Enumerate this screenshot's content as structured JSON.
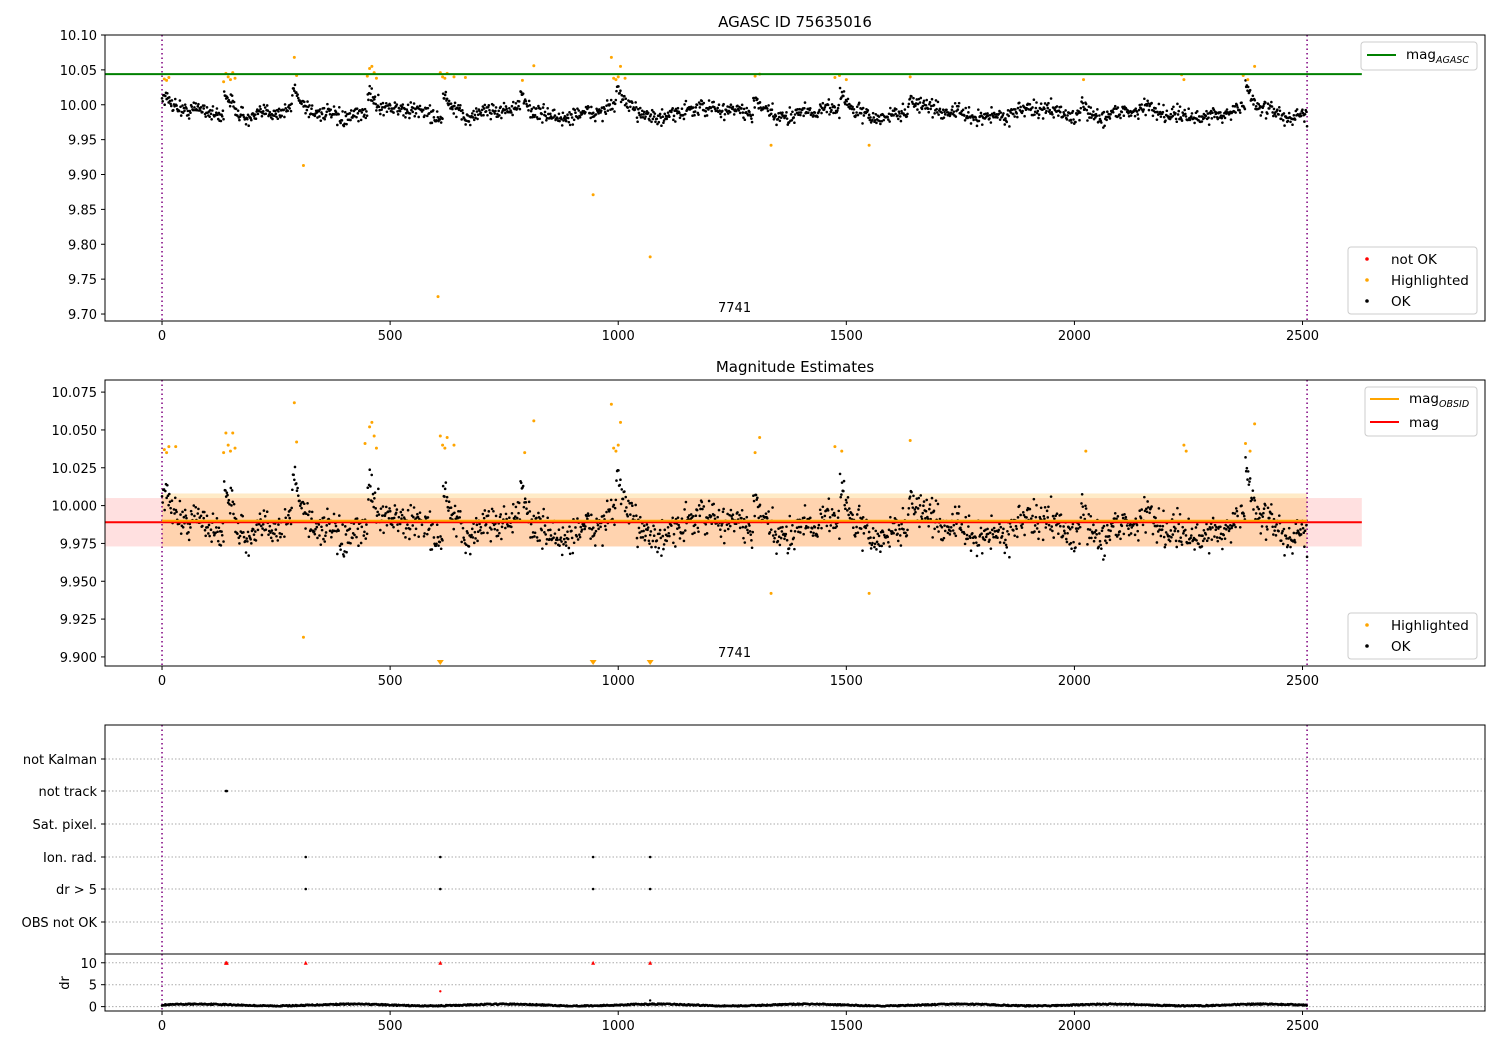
{
  "chart_data": [
    {
      "type": "scatter",
      "title": "AGASC ID 75635016",
      "xlim": [
        -125,
        2900
      ],
      "ylim": [
        9.69,
        10.1
      ],
      "xticks": [
        0,
        500,
        1000,
        1500,
        2000,
        2500
      ],
      "yticks": [
        9.7,
        9.75,
        9.8,
        9.85,
        9.9,
        9.95,
        10.0,
        10.05,
        10.1
      ],
      "ytick_labels": [
        "9.70",
        "9.75",
        "9.80",
        "9.85",
        "9.90",
        "9.95",
        "10.00",
        "10.05",
        "10.10"
      ],
      "obsid_label": "7741",
      "obsid_label_x": 1255,
      "obs_bounds": [
        0,
        2510
      ],
      "mag_agasc": 10.044,
      "mag_agasc_x_range": [
        -125,
        2630
      ],
      "legend_top": {
        "entries": [
          {
            "label_main": "mag",
            "label_sub": "AGASC",
            "color": "#008000"
          }
        ]
      },
      "legend_bottom": {
        "entries": [
          {
            "label": "not OK",
            "color": "#ff0000"
          },
          {
            "label": "Highlighted",
            "color": "#ffa500"
          },
          {
            "label": "OK",
            "color": "#000000"
          }
        ]
      },
      "highlighted_points": [
        [
          5,
          10.037
        ],
        [
          10,
          10.035
        ],
        [
          15,
          10.039
        ],
        [
          135,
          10.033
        ],
        [
          140,
          10.045
        ],
        [
          145,
          10.04
        ],
        [
          150,
          10.036
        ],
        [
          155,
          10.046
        ],
        [
          160,
          10.038
        ],
        [
          290,
          10.068
        ],
        [
          295,
          10.042
        ],
        [
          310,
          9.913
        ],
        [
          450,
          10.041
        ],
        [
          455,
          10.052
        ],
        [
          460,
          10.055
        ],
        [
          465,
          10.046
        ],
        [
          470,
          10.038
        ],
        [
          605,
          9.725
        ],
        [
          610,
          10.046
        ],
        [
          615,
          10.04
        ],
        [
          620,
          10.038
        ],
        [
          625,
          10.045
        ],
        [
          640,
          10.04
        ],
        [
          665,
          10.039
        ],
        [
          790,
          10.035
        ],
        [
          815,
          10.056
        ],
        [
          945,
          9.871
        ],
        [
          985,
          10.068
        ],
        [
          990,
          10.038
        ],
        [
          995,
          10.036
        ],
        [
          1000,
          10.04
        ],
        [
          1005,
          10.055
        ],
        [
          1015,
          10.038
        ],
        [
          1070,
          9.782
        ],
        [
          1300,
          10.041
        ],
        [
          1310,
          10.044
        ],
        [
          1335,
          9.942
        ],
        [
          1475,
          10.039
        ],
        [
          1485,
          10.042
        ],
        [
          1500,
          10.036
        ],
        [
          1550,
          9.942
        ],
        [
          1640,
          10.04
        ],
        [
          2020,
          10.036
        ],
        [
          2235,
          10.043
        ],
        [
          2240,
          10.036
        ],
        [
          2370,
          10.042
        ],
        [
          2380,
          10.036
        ],
        [
          2395,
          10.055
        ]
      ]
    },
    {
      "type": "scatter",
      "title": "Magnitude Estimates",
      "xlim": [
        -125,
        2900
      ],
      "ylim": [
        9.894,
        10.083
      ],
      "xticks": [
        0,
        500,
        1000,
        1500,
        2000,
        2500
      ],
      "yticks": [
        9.9,
        9.925,
        9.95,
        9.975,
        10.0,
        10.025,
        10.05,
        10.075
      ],
      "ytick_labels": [
        "9.900",
        "9.925",
        "9.950",
        "9.975",
        "10.000",
        "10.025",
        "10.050",
        "10.075"
      ],
      "obsid_label": "7741",
      "obsid_label_x": 1255,
      "obs_bounds": [
        0,
        2510
      ],
      "mag": 9.989,
      "mag_band": [
        9.973,
        10.005
      ],
      "mag_x_range": [
        -125,
        2630
      ],
      "mag_obsid": 9.99,
      "mag_obsid_band": [
        9.973,
        10.008
      ],
      "mag_obsid_x_range": [
        0,
        2510
      ],
      "legend_top": {
        "entries": [
          {
            "label_main": "mag",
            "label_sub": "OBSID",
            "color": "#ffa500"
          },
          {
            "label_main": "mag",
            "label_sub": "",
            "color": "#ff0000"
          }
        ]
      },
      "legend_bottom": {
        "entries": [
          {
            "label": "Highlighted",
            "color": "#ffa500"
          },
          {
            "label": "OK",
            "color": "#000000"
          }
        ]
      },
      "highlighted_points": [
        [
          5,
          10.037
        ],
        [
          10,
          10.035
        ],
        [
          15,
          10.039
        ],
        [
          30,
          10.039
        ],
        [
          135,
          10.035
        ],
        [
          140,
          10.048
        ],
        [
          145,
          10.04
        ],
        [
          150,
          10.036
        ],
        [
          155,
          10.048
        ],
        [
          160,
          10.038
        ],
        [
          290,
          10.068
        ],
        [
          295,
          10.042
        ],
        [
          310,
          9.913
        ],
        [
          445,
          10.041
        ],
        [
          455,
          10.052
        ],
        [
          460,
          10.055
        ],
        [
          465,
          10.046
        ],
        [
          470,
          10.038
        ],
        [
          610,
          10.046
        ],
        [
          615,
          10.04
        ],
        [
          620,
          10.038
        ],
        [
          625,
          10.045
        ],
        [
          640,
          10.04
        ],
        [
          795,
          10.035
        ],
        [
          815,
          10.056
        ],
        [
          985,
          10.067
        ],
        [
          990,
          10.038
        ],
        [
          995,
          10.036
        ],
        [
          1000,
          10.04
        ],
        [
          1005,
          10.055
        ],
        [
          1300,
          10.035
        ],
        [
          1310,
          10.045
        ],
        [
          1335,
          9.942
        ],
        [
          1475,
          10.039
        ],
        [
          1490,
          10.036
        ],
        [
          1550,
          9.942
        ],
        [
          1640,
          10.043
        ],
        [
          2025,
          10.036
        ],
        [
          2240,
          10.04
        ],
        [
          2245,
          10.036
        ],
        [
          2375,
          10.041
        ],
        [
          2385,
          10.036
        ],
        [
          2395,
          10.054
        ]
      ],
      "offscale_markers_x": [
        610,
        945,
        1070
      ]
    },
    {
      "type": "scatter",
      "title": "",
      "xlim": [
        -125,
        2900
      ],
      "xticks": [
        0,
        500,
        1000,
        1500,
        2000,
        2500
      ],
      "categories": [
        "not Kalman",
        "not track",
        "Sat. pixel.",
        "Ion. rad.",
        "dr > 5",
        "OBS not OK"
      ],
      "flag_points": {
        "not Kalman": [],
        "not track": [
          140,
          142
        ],
        "Sat. pixel.": [],
        "Ion. rad.": [
          315,
          610,
          945,
          1070
        ],
        "dr > 5": [
          315,
          610,
          945,
          1070
        ],
        "OBS not OK": []
      },
      "obs_bounds": [
        0,
        2510
      ]
    },
    {
      "type": "scatter",
      "title": "",
      "ylabel": "dr",
      "xlim": [
        -125,
        2900
      ],
      "ylim": [
        -1,
        12
      ],
      "xticks": [
        0,
        500,
        1000,
        1500,
        2000,
        2500
      ],
      "xtick_labels": [
        "0",
        "500",
        "1000",
        "1500",
        "2000",
        "2500"
      ],
      "yticks": [
        0,
        5,
        10
      ],
      "ytick_labels": [
        "0",
        "5",
        "10"
      ],
      "obs_bounds": [
        0,
        2510
      ],
      "clipped_points": [
        [
          140,
          10
        ],
        [
          142,
          10
        ],
        [
          315,
          10
        ],
        [
          610,
          10
        ],
        [
          945,
          10
        ],
        [
          1070,
          10
        ]
      ],
      "other_points": [
        [
          610,
          3.5
        ],
        [
          1070,
          1.4
        ]
      ]
    }
  ]
}
